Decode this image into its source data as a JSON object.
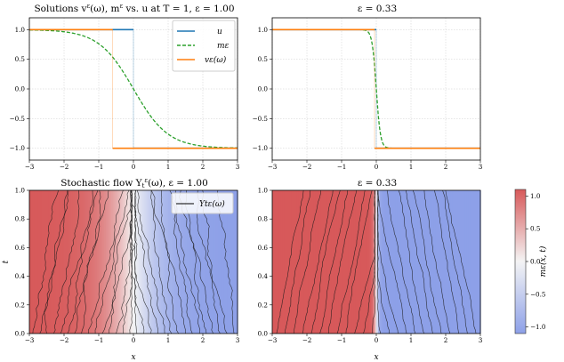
{
  "chart_data": [
    {
      "id": "top-left",
      "type": "line",
      "title": "Solutions vε(ω), mε vs. u at T = 1, ε = 1.00",
      "xlim": [
        -3,
        3
      ],
      "ylim": [
        -1.2,
        1.2
      ],
      "xticks": [
        "−3",
        "−2",
        "−1",
        "0",
        "1",
        "2",
        "3"
      ],
      "yticks": [
        "−1.0",
        "−0.5",
        "0.0",
        "0.5",
        "1.0"
      ],
      "grid": true,
      "legend": {
        "placement": "top-right",
        "entries": [
          "u",
          "mε",
          "vε(ω)"
        ]
      },
      "series": [
        {
          "name": "u",
          "color": "#1f77b4",
          "style": "solid",
          "shock_at": 0.0
        },
        {
          "name": "mε",
          "color": "#2ca02c",
          "style": "dashed",
          "kind": "tanh",
          "width": 1.0
        },
        {
          "name": "vε(ω)",
          "color": "#ff7f0e",
          "style": "solid",
          "shock_at": -0.6
        }
      ]
    },
    {
      "id": "top-right",
      "type": "line",
      "title": "ε = 0.33",
      "xlim": [
        -3,
        3
      ],
      "ylim": [
        -1.2,
        1.2
      ],
      "xticks": [
        "−3",
        "−2",
        "−1",
        "0",
        "1",
        "2",
        "3"
      ],
      "yticks": [
        "−1.0",
        "−0.5",
        "0.0",
        "0.5",
        "1.0"
      ],
      "grid": true,
      "series": [
        {
          "name": "u",
          "color": "#1f77b4",
          "style": "solid",
          "shock_at": 0.0
        },
        {
          "name": "mε",
          "color": "#2ca02c",
          "style": "dashed",
          "kind": "tanh",
          "width": 0.12
        },
        {
          "name": "vε(ω)",
          "color": "#ff7f0e",
          "style": "solid",
          "shock_at": -0.05
        }
      ]
    },
    {
      "id": "bottom-left",
      "type": "heatmap",
      "title": "Stochastic flow Ytε(ω), ε = 1.00",
      "xlabel": "x",
      "ylabel": "t",
      "xlim": [
        -3,
        3
      ],
      "ylim": [
        0,
        1
      ],
      "xticks": [
        "−3",
        "−2",
        "−1",
        "0",
        "1",
        "2",
        "3"
      ],
      "yticks": [
        "0.0",
        "0.2",
        "0.4",
        "0.6",
        "0.8",
        "1.0"
      ],
      "field": {
        "kind": "tanh",
        "width": 1.0
      },
      "flow": {
        "lines": 30,
        "noise": 0.09
      },
      "legend": {
        "placement": "top-right",
        "entries": [
          "Ytε(ω)"
        ]
      }
    },
    {
      "id": "bottom-right",
      "type": "heatmap",
      "title": "ε = 0.33",
      "xlabel": "x",
      "xlim": [
        -3,
        3
      ],
      "ylim": [
        0,
        1
      ],
      "xticks": [
        "−3",
        "−2",
        "−1",
        "0",
        "1",
        "2",
        "3"
      ],
      "yticks": [
        "0.0",
        "0.2",
        "0.4",
        "0.6",
        "0.8",
        "1.0"
      ],
      "field": {
        "kind": "tanh",
        "width": 0.08
      },
      "flow": {
        "lines": 24,
        "noise": 0.04
      }
    }
  ],
  "colorbar": {
    "label": "mε(x, t)",
    "range": [
      -1.1,
      1.1
    ],
    "ticks": [
      "1.0",
      "0.5",
      "0.0",
      "−0.5",
      "−1.0"
    ]
  },
  "colors": {
    "red": "#d7595a",
    "white": "#f4f4f4",
    "blue": "#8da0e8",
    "grid": "#cccccc"
  }
}
